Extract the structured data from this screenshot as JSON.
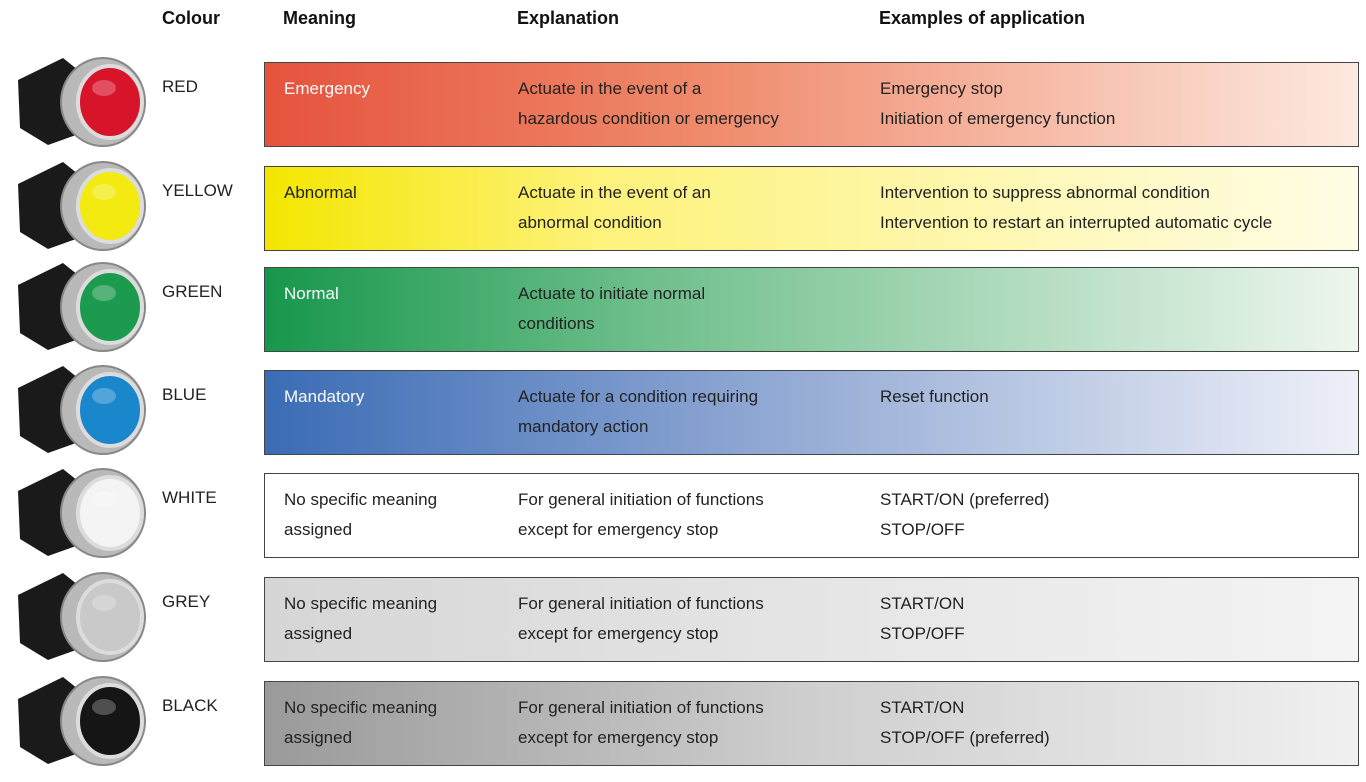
{
  "header": {
    "colour": "Colour",
    "meaning": "Meaning",
    "explanation": "Explanation",
    "examples": "Examples of application"
  },
  "rows": [
    {
      "colour": "RED",
      "meaning": [
        "Emergency"
      ],
      "explanation": [
        "Actuate in the event of a",
        "hazardous condition or emergency"
      ],
      "examples": [
        "Emergency stop",
        "Initiation of emergency function"
      ]
    },
    {
      "colour": "YELLOW",
      "meaning": [
        "Abnormal"
      ],
      "explanation": [
        "Actuate in the event of an",
        "abnormal condition"
      ],
      "examples": [
        "Intervention to suppress abnormal condition",
        "Intervention to restart an interrupted automatic cycle"
      ]
    },
    {
      "colour": "GREEN",
      "meaning": [
        "Normal"
      ],
      "explanation": [
        "Actuate to initiate normal",
        "conditions"
      ],
      "examples": []
    },
    {
      "colour": "BLUE",
      "meaning": [
        "Mandatory"
      ],
      "explanation": [
        "Actuate for a condition requiring",
        "mandatory action"
      ],
      "examples": [
        "Reset function"
      ]
    },
    {
      "colour": "WHITE",
      "meaning": [
        "No specific meaning",
        "assigned"
      ],
      "explanation": [
        "For general initiation of functions",
        "except for emergency stop"
      ],
      "examples": [
        "START/ON (preferred)",
        "STOP/OFF"
      ]
    },
    {
      "colour": "GREY",
      "meaning": [
        "No specific meaning",
        "assigned"
      ],
      "explanation": [
        "For general initiation of functions",
        "except for emergency stop"
      ],
      "examples": [
        "START/ON",
        "STOP/OFF"
      ]
    },
    {
      "colour": "BLACK",
      "meaning": [
        "No specific meaning",
        "assigned"
      ],
      "explanation": [
        "For general initiation of functions",
        "except for emergency stop"
      ],
      "examples": [
        "START/ON",
        "STOP/OFF (preferred)"
      ]
    }
  ]
}
